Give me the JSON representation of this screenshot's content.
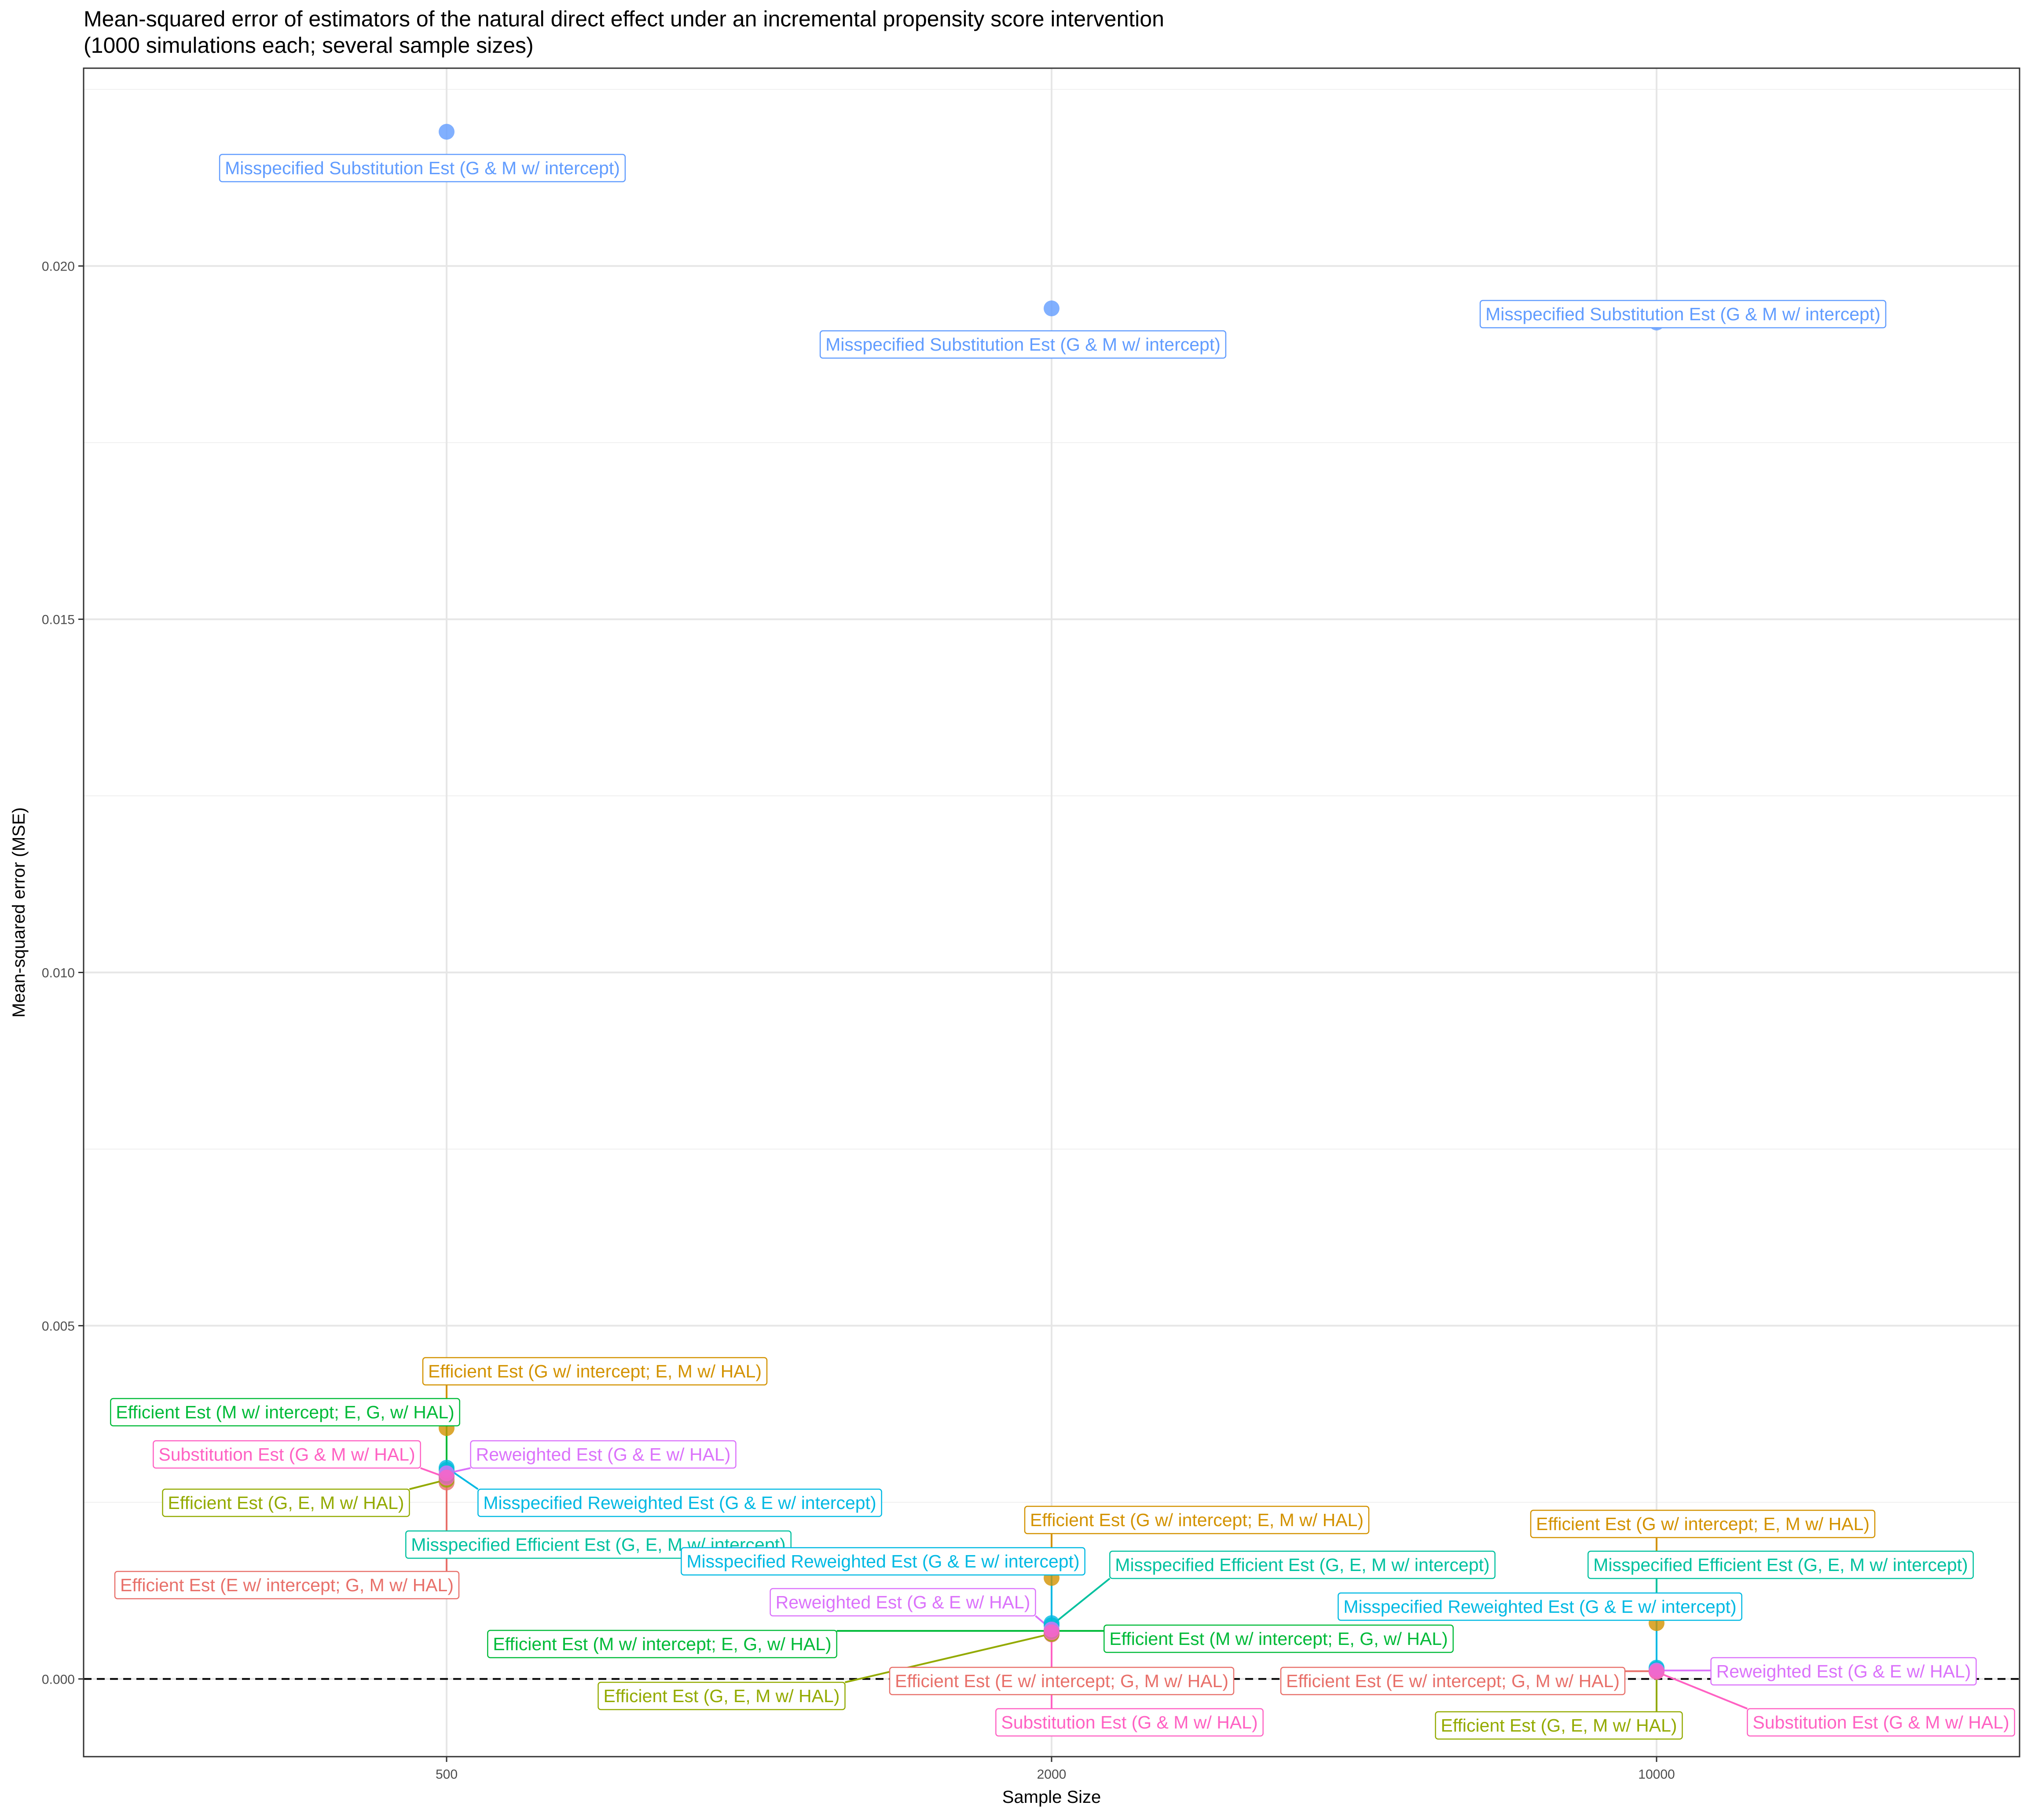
{
  "chart_data": {
    "type": "scatter",
    "title_lines": [
      "Mean-squared error of estimators of the natural direct effect under an incremental propensity score intervention",
      "(1000 simulations each; several sample sizes)"
    ],
    "xlabel": "Sample Size",
    "ylabel": "Mean-squared error (MSE)",
    "x_categories": [
      "500",
      "2000",
      "10000"
    ],
    "y_ticks": [
      "0.000",
      "0.005",
      "0.010",
      "0.015",
      "0.020"
    ],
    "y_tick_values": [
      0,
      0.005,
      0.01,
      0.015,
      0.02
    ],
    "ylim": [
      -0.0011,
      0.0228
    ],
    "reference_line": {
      "y": 0,
      "style": "dashed"
    },
    "grid": true,
    "legend": "none",
    "series": [
      {
        "name": "Efficient Est (E w/ intercept; G, M w/ HAL)",
        "color": "#E8706A",
        "points": [
          {
            "x": "500",
            "y": 0.00278
          },
          {
            "x": "2000",
            "y": 0.00063
          },
          {
            "x": "10000",
            "y": 0.00011
          }
        ]
      },
      {
        "name": "Efficient Est (G w/ intercept; E, M w/ HAL)",
        "color": "#D39200",
        "points": [
          {
            "x": "500",
            "y": 0.00355
          },
          {
            "x": "2000",
            "y": 0.00143
          },
          {
            "x": "10000",
            "y": 0.00079
          }
        ]
      },
      {
        "name": "Efficient Est (G, E, M w/ HAL)",
        "color": "#93AA00",
        "points": [
          {
            "x": "500",
            "y": 0.00282
          },
          {
            "x": "2000",
            "y": 0.00064
          },
          {
            "x": "10000",
            "y": 0.00011
          }
        ]
      },
      {
        "name": "Efficient Est (M w/ intercept; E, G, w/ HAL)",
        "color": "#00BA38",
        "points": [
          {
            "x": "500",
            "y": 0.00287
          },
          {
            "x": "2000",
            "y": 0.00068
          },
          {
            "x": "10000",
            "y": 0.00013
          }
        ]
      },
      {
        "name": "Misspecified Efficient Est (G, E, M w/ intercept)",
        "color": "#00C19F",
        "points": [
          {
            "x": "500",
            "y": 0.00296
          },
          {
            "x": "2000",
            "y": 0.00076
          },
          {
            "x": "10000",
            "y": 0.00014
          }
        ]
      },
      {
        "name": "Misspecified Reweighted Est (G & E w/ intercept)",
        "color": "#00B9E3",
        "points": [
          {
            "x": "500",
            "y": 0.00299
          },
          {
            "x": "2000",
            "y": 0.00079
          },
          {
            "x": "10000",
            "y": 0.00016
          }
        ]
      },
      {
        "name": "Misspecified Substitution Est (G & M w/ intercept)",
        "color": "#619CFF",
        "points": [
          {
            "x": "500",
            "y": 0.0219
          },
          {
            "x": "2000",
            "y": 0.0194
          },
          {
            "x": "10000",
            "y": 0.0192
          }
        ]
      },
      {
        "name": "Reweighted Est (G & E w/ HAL)",
        "color": "#DB72FB",
        "points": [
          {
            "x": "500",
            "y": 0.00291
          },
          {
            "x": "2000",
            "y": 0.0007
          },
          {
            "x": "10000",
            "y": 0.00012
          }
        ]
      },
      {
        "name": "Substitution Est (G & M w/ HAL)",
        "color": "#FF61C3",
        "points": [
          {
            "x": "500",
            "y": 0.00285
          },
          {
            "x": "2000",
            "y": 0.00066
          },
          {
            "x": "10000",
            "y": 0.0001
          }
        ]
      }
    ]
  }
}
